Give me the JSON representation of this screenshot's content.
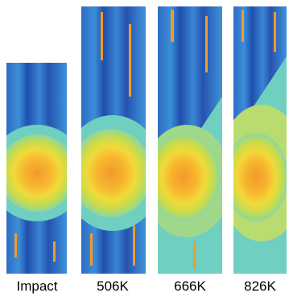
{
  "panels": [
    {
      "label": "Impact"
    },
    {
      "label": "506K"
    },
    {
      "label": "666K"
    },
    {
      "label": "826K"
    }
  ]
}
